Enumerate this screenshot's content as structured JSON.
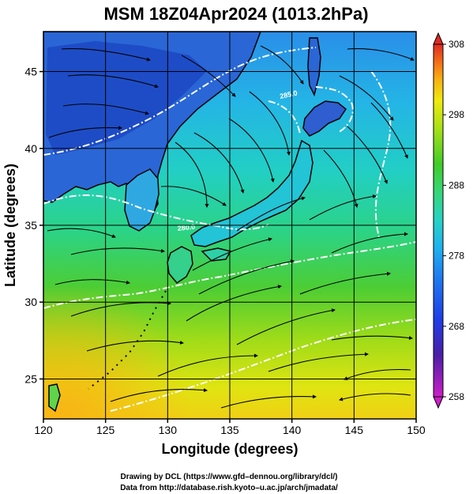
{
  "title": "MSM 18Z04Apr2024 (1013.2hPa)",
  "map": {
    "xlabel": "Longitude (degrees)",
    "ylabel": "Latitude  (degrees)",
    "xlim": [
      120,
      150
    ],
    "ylim": [
      22.4,
      47.6
    ],
    "x_ticks": [
      120,
      125,
      130,
      135,
      140,
      145,
      150
    ],
    "y_ticks": [
      25,
      30,
      35,
      40,
      45
    ],
    "grid": true,
    "contour_labels": [
      {
        "text": "285.0",
        "lon": 138.2,
        "lat": 44.7
      },
      {
        "text": "280.0",
        "lon": 136.5,
        "lat": 35.6
      }
    ]
  },
  "colorbar": {
    "min": 258,
    "max": 308,
    "ticks": [
      258,
      268,
      278,
      288,
      298,
      308
    ],
    "colors": [
      "#cc1ec8",
      "#3a1ea8",
      "#1e3ee8",
      "#1e9cf0",
      "#26d2c6",
      "#36d67a",
      "#40cc28",
      "#a6e016",
      "#f0ea10",
      "#f8b012",
      "#f46e18",
      "#e02a24"
    ]
  },
  "credits": {
    "line1": "Drawing by DCL (https://www.gfd–dennou.org/library/dcl/)",
    "line2": "Data from http://database.rish.kyoto–u.ac.jp/arch/jmadata/"
  }
}
